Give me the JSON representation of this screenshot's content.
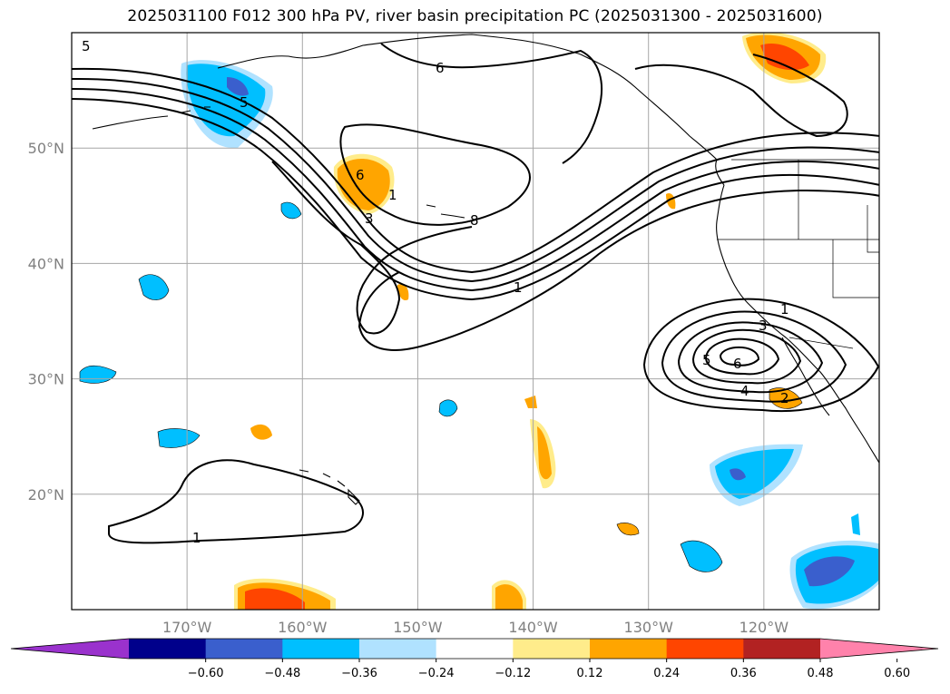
{
  "title": "2025031100 F012 300 hPa PV, river basin precipitation PC (2025031300 - 2025031600)",
  "map": {
    "lon_range": [
      -180,
      -110
    ],
    "lat_range": [
      10,
      60
    ],
    "lat_ticks": [
      {
        "value": 20,
        "label": "20°N"
      },
      {
        "value": 30,
        "label": "30°N"
      },
      {
        "value": 40,
        "label": "40°N"
      },
      {
        "value": 50,
        "label": "50°N"
      }
    ],
    "lon_ticks": [
      {
        "value": -170,
        "label": "170°W"
      },
      {
        "value": -160,
        "label": "160°W"
      },
      {
        "value": -150,
        "label": "150°W"
      },
      {
        "value": -140,
        "label": "140°W"
      },
      {
        "value": -130,
        "label": "130°W"
      },
      {
        "value": -120,
        "label": "120°W"
      }
    ],
    "gridlines": true,
    "contour_labels": [
      "5",
      "6",
      "5",
      "6",
      "3",
      "1",
      "8",
      "1",
      "1",
      "3",
      "5",
      "6",
      "4",
      "2",
      "1"
    ]
  },
  "colorbar": {
    "colors": [
      "#9a32cd",
      "#00008b",
      "#3a5fcd",
      "#00bfff",
      "#b0e2ff",
      "#ffffff",
      "#ffec8b",
      "#ffa500",
      "#ff4500",
      "#b22222",
      "#ff82ab"
    ],
    "tick_labels": [
      "−0.60",
      "−0.48",
      "−0.36",
      "−0.24",
      "−0.12",
      "0.12",
      "0.24",
      "0.36",
      "0.48",
      "0.60"
    ]
  },
  "precip_colors": {
    "neg_light": "#b0e2ff",
    "neg_mid": "#00bfff",
    "neg_strong": "#3a5fcd",
    "neg_extreme": "#5a3fcd",
    "pos_light": "#ffec8b",
    "pos_mid": "#ffa500",
    "pos_strong": "#ff4500"
  }
}
